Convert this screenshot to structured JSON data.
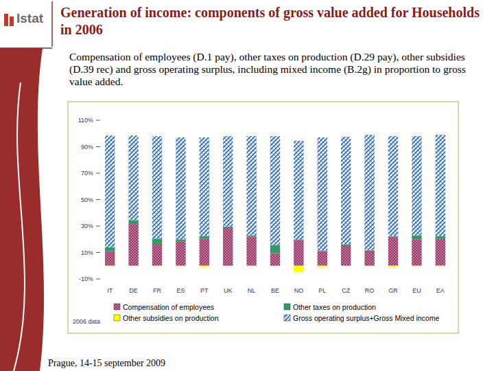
{
  "slide": {
    "logo": "Istat",
    "title": "Generation of income: components of gross value added for Households in 2006",
    "subtitle": "Compensation of employees (D.1 pay), other taxes on production (D.29 pay), other subsidies (D.39 rec) and  gross operating surplus, including mixed income (B.2g) in proportion to gross value added.",
    "footer": "Prague, 14-15 september 2009"
  },
  "chart_data": {
    "type": "bar",
    "stacked": true,
    "grid": false,
    "legend": "bottom",
    "annotations": [
      "2006 data"
    ],
    "categories": [
      "IT",
      "DE",
      "FR",
      "ES",
      "PT",
      "UK",
      "NL",
      "BE",
      "NO",
      "PL",
      "CZ",
      "RO",
      "GR",
      "EU",
      "EA"
    ],
    "series": [
      {
        "name": "Compensation of employees",
        "color": "#993366",
        "values": [
          11,
          31.5,
          16,
          18.5,
          20.5,
          29,
          22,
          9.5,
          19.5,
          11,
          15.5,
          11.5,
          22,
          20,
          20.5
        ]
      },
      {
        "name": "Other taxes on production",
        "color": "#339966",
        "values": [
          3,
          3,
          4.5,
          1.5,
          2,
          0.5,
          1,
          6,
          0.5,
          0.5,
          0.5,
          0.5,
          0.5,
          3,
          2
        ]
      },
      {
        "name": "Other subsidies on production",
        "color": "#ffff00",
        "values": [
          -0.5,
          0,
          -0.5,
          -0.5,
          -1,
          0,
          -0.5,
          0,
          -5,
          -1,
          0,
          0,
          -1,
          -0.5,
          -0.5
        ]
      },
      {
        "name": "Gross operating surplus+Gross Mixed income",
        "color": "#3366cc",
        "values": [
          84.5,
          64,
          77.5,
          77,
          74.5,
          68.5,
          75,
          82.5,
          74.5,
          85.5,
          81.5,
          87,
          75.5,
          75,
          76.5
        ]
      }
    ],
    "ylim": [
      -10,
      110
    ],
    "yticks": [
      {
        "value": -10,
        "label": "-10%"
      },
      {
        "value": 10,
        "label": "10%"
      },
      {
        "value": 30,
        "label": "30%"
      },
      {
        "value": 50,
        "label": "50%"
      },
      {
        "value": 70,
        "label": "70%"
      },
      {
        "value": 90,
        "label": "90%"
      },
      {
        "value": 110,
        "label": "110%"
      }
    ]
  }
}
